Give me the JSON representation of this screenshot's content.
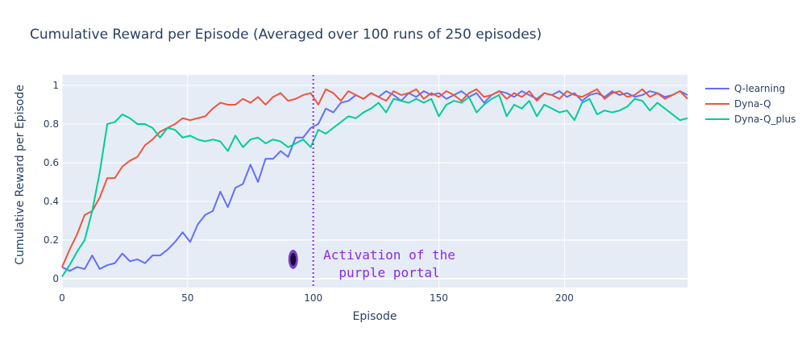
{
  "chart_data": {
    "type": "line",
    "title": "Cumulative Reward per Episode (Averaged over 100 runs of 250 episodes)",
    "xlabel": "Episode",
    "ylabel": "Cumulative Reward per Episode",
    "xlim": [
      0,
      249
    ],
    "ylim": [
      -0.046,
      1.054
    ],
    "xticks": [
      0,
      50,
      100,
      150,
      200
    ],
    "yticks": [
      0,
      0.2,
      0.4,
      0.6,
      0.8,
      1
    ],
    "ytick_labels": [
      "0",
      "0.2",
      "0.4",
      "0.6",
      "0.8",
      "1"
    ],
    "grid": true,
    "legend_placement": "right",
    "background": "#e5ecf6",
    "x": [
      0,
      3,
      6,
      9,
      12,
      15,
      18,
      21,
      24,
      27,
      30,
      33,
      36,
      39,
      42,
      45,
      48,
      51,
      54,
      57,
      60,
      63,
      66,
      69,
      72,
      75,
      78,
      81,
      84,
      87,
      90,
      93,
      96,
      99,
      102,
      105,
      108,
      111,
      114,
      117,
      120,
      123,
      126,
      129,
      132,
      135,
      138,
      141,
      144,
      147,
      150,
      153,
      156,
      159,
      162,
      165,
      168,
      171,
      174,
      177,
      180,
      183,
      186,
      189,
      192,
      195,
      198,
      201,
      204,
      207,
      210,
      213,
      216,
      219,
      222,
      225,
      228,
      231,
      234,
      237,
      240,
      243,
      246,
      249
    ],
    "series": [
      {
        "name": "Q-learning",
        "color": "#636efa",
        "values": [
          0.06,
          0.04,
          0.06,
          0.05,
          0.12,
          0.05,
          0.07,
          0.08,
          0.13,
          0.09,
          0.1,
          0.08,
          0.12,
          0.12,
          0.15,
          0.19,
          0.24,
          0.19,
          0.28,
          0.33,
          0.35,
          0.45,
          0.37,
          0.47,
          0.49,
          0.59,
          0.5,
          0.62,
          0.62,
          0.66,
          0.63,
          0.73,
          0.73,
          0.78,
          0.8,
          0.88,
          0.86,
          0.91,
          0.92,
          0.95,
          0.93,
          0.96,
          0.94,
          0.97,
          0.95,
          0.92,
          0.96,
          0.94,
          0.97,
          0.95,
          0.96,
          0.93,
          0.95,
          0.97,
          0.94,
          0.96,
          0.91,
          0.95,
          0.97,
          0.96,
          0.94,
          0.97,
          0.95,
          0.93,
          0.96,
          0.95,
          0.97,
          0.94,
          0.96,
          0.92,
          0.95,
          0.96,
          0.94,
          0.97,
          0.95,
          0.96,
          0.94,
          0.95,
          0.97,
          0.96,
          0.94,
          0.95,
          0.97,
          0.95
        ]
      },
      {
        "name": "Dyna-Q",
        "color": "#ef553b",
        "values": [
          0.06,
          0.15,
          0.23,
          0.33,
          0.35,
          0.42,
          0.52,
          0.52,
          0.58,
          0.61,
          0.63,
          0.69,
          0.72,
          0.76,
          0.78,
          0.8,
          0.83,
          0.82,
          0.83,
          0.84,
          0.88,
          0.91,
          0.9,
          0.9,
          0.93,
          0.91,
          0.94,
          0.9,
          0.94,
          0.96,
          0.92,
          0.93,
          0.95,
          0.96,
          0.9,
          0.98,
          0.96,
          0.92,
          0.97,
          0.95,
          0.93,
          0.96,
          0.94,
          0.92,
          0.97,
          0.95,
          0.96,
          0.98,
          0.93,
          0.96,
          0.94,
          0.97,
          0.95,
          0.92,
          0.96,
          0.98,
          0.94,
          0.95,
          0.97,
          0.93,
          0.96,
          0.94,
          0.97,
          0.92,
          0.96,
          0.95,
          0.93,
          0.97,
          0.95,
          0.94,
          0.96,
          0.98,
          0.93,
          0.96,
          0.97,
          0.94,
          0.95,
          0.98,
          0.94,
          0.96,
          0.93,
          0.95,
          0.97,
          0.93
        ]
      },
      {
        "name": "Dyna-Q_plus",
        "color": "#00cc96",
        "values": [
          0.01,
          0.07,
          0.14,
          0.2,
          0.35,
          0.55,
          0.8,
          0.81,
          0.85,
          0.83,
          0.8,
          0.8,
          0.78,
          0.73,
          0.78,
          0.77,
          0.73,
          0.74,
          0.72,
          0.71,
          0.72,
          0.71,
          0.66,
          0.74,
          0.68,
          0.72,
          0.73,
          0.7,
          0.72,
          0.71,
          0.68,
          0.7,
          0.72,
          0.68,
          0.77,
          0.75,
          0.78,
          0.81,
          0.84,
          0.83,
          0.86,
          0.88,
          0.91,
          0.86,
          0.93,
          0.92,
          0.91,
          0.93,
          0.91,
          0.93,
          0.84,
          0.9,
          0.92,
          0.91,
          0.94,
          0.86,
          0.9,
          0.93,
          0.95,
          0.84,
          0.9,
          0.88,
          0.92,
          0.84,
          0.9,
          0.88,
          0.86,
          0.87,
          0.82,
          0.91,
          0.93,
          0.85,
          0.87,
          0.86,
          0.87,
          0.89,
          0.93,
          0.92,
          0.87,
          0.91,
          0.88,
          0.85,
          0.82,
          0.83
        ]
      }
    ],
    "vline": {
      "x": 100,
      "color": "#8a2be2",
      "style": "dotted"
    },
    "annotation": {
      "lines": [
        "Activation of the",
        "purple portal"
      ],
      "color": "#8a2be2"
    },
    "portal_marker": {
      "x": 92,
      "y": 0.1,
      "icon": "purple-portal-icon",
      "color": "#4b1a8a"
    }
  }
}
